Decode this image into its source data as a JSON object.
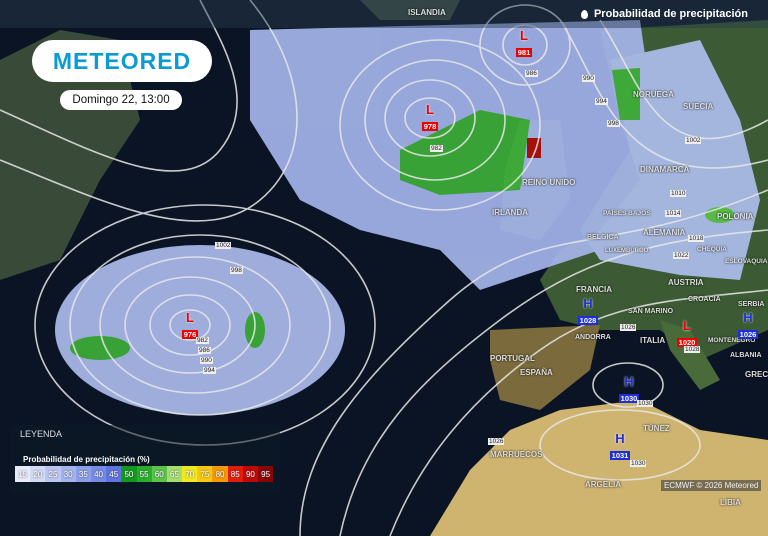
{
  "header": {
    "title": "Probabilidad de precipitación",
    "icon": "drop-icon"
  },
  "brand": {
    "logo_text": "METEORED",
    "color": "#0a9ad6"
  },
  "forecast_time": "Domingo 22, 13:00",
  "legend": {
    "title": "LEYENDA",
    "subtitle": "Probabilidad de precipitación (%)",
    "steps": [
      {
        "value": "15",
        "color": "#e8ecfa"
      },
      {
        "value": "20",
        "color": "#d2daf6"
      },
      {
        "value": "25",
        "color": "#bcc6f2"
      },
      {
        "value": "30",
        "color": "#a4b2ee"
      },
      {
        "value": "35",
        "color": "#8c9eea"
      },
      {
        "value": "40",
        "color": "#768ae6"
      },
      {
        "value": "45",
        "color": "#5e74e0"
      },
      {
        "value": "50",
        "color": "#129a1e"
      },
      {
        "value": "55",
        "color": "#2aae2e"
      },
      {
        "value": "60",
        "color": "#5cc44a"
      },
      {
        "value": "65",
        "color": "#a6de6e"
      },
      {
        "value": "70",
        "color": "#f2e820"
      },
      {
        "value": "75",
        "color": "#f8c810"
      },
      {
        "value": "80",
        "color": "#f49a06"
      },
      {
        "value": "85",
        "color": "#e41c0c"
      },
      {
        "value": "90",
        "color": "#c00808"
      },
      {
        "value": "95",
        "color": "#8a0404"
      }
    ]
  },
  "pressure_centers": [
    {
      "type": "L",
      "value": "981"
    },
    {
      "type": "L",
      "value": "978"
    },
    {
      "type": "L",
      "value": "976"
    },
    {
      "type": "L",
      "value": "1020"
    },
    {
      "type": "H",
      "value": "1028"
    },
    {
      "type": "H",
      "value": "1030"
    },
    {
      "type": "H",
      "value": "1031"
    },
    {
      "type": "H",
      "value": "1026"
    }
  ],
  "isobar_labels": [
    "986",
    "990",
    "994",
    "998",
    "982",
    "1002",
    "1010",
    "1014",
    "1018",
    "1022",
    "998",
    "1002",
    "982",
    "986",
    "990",
    "994",
    "1026",
    "1028",
    "1030",
    "1030",
    "1026"
  ],
  "places": [
    "ISLANDIA",
    "NORUEGA",
    "SUECIA",
    "DINAMARCA",
    "REINO UNIDO",
    "IRLANDA",
    "PAÍSES BAJOS",
    "BÉLGICA",
    "LUXEMBURGO",
    "ALEMANIA",
    "POLONIA",
    "CHEQUIA",
    "ESLOVAQUIA",
    "FRANCIA",
    "AUSTRIA",
    "CROACIA",
    "SAN MARINO",
    "ITALIA",
    "SERBIA",
    "MONTENEGRO",
    "ALBANIA",
    "GRECIA",
    "ANDORRA",
    "PORTUGAL",
    "ESPAÑA",
    "TÚNEZ",
    "MARRUECOS",
    "ARGELIA",
    "LIBIA"
  ],
  "credit": "ECMWF © 2026 Meteored"
}
